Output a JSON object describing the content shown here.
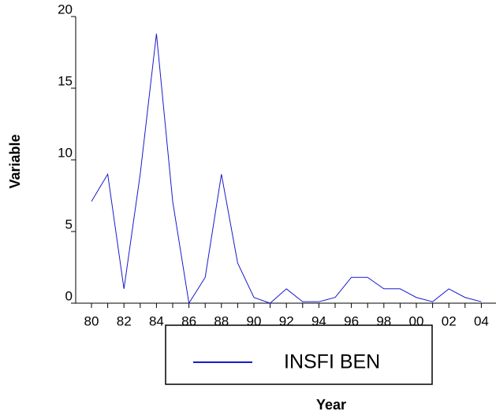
{
  "chart_data": {
    "type": "line",
    "x_label": "Year",
    "y_label": "Variable",
    "categories": [
      "80",
      null,
      "82",
      null,
      "84",
      null,
      "86",
      null,
      "88",
      null,
      "90",
      null,
      "92",
      null,
      "94",
      null,
      "96",
      null,
      "98",
      null,
      "00",
      null,
      "02",
      null,
      "04"
    ],
    "series": [
      {
        "name": "INSFI BEN",
        "color": "#1a1acc",
        "values": [
          7.1,
          9.0,
          1.0,
          9.0,
          18.8,
          7.1,
          0,
          1.8,
          9.0,
          2.8,
          0.4,
          0,
          1.0,
          0.1,
          0.1,
          0.4,
          1.8,
          1.8,
          1.0,
          1.0,
          0.4,
          0.1,
          1.0,
          0.4,
          0.1
        ]
      }
    ],
    "ylim": [
      0,
      20
    ],
    "yticks": [
      0,
      5,
      10,
      15,
      20
    ],
    "grid": false
  }
}
